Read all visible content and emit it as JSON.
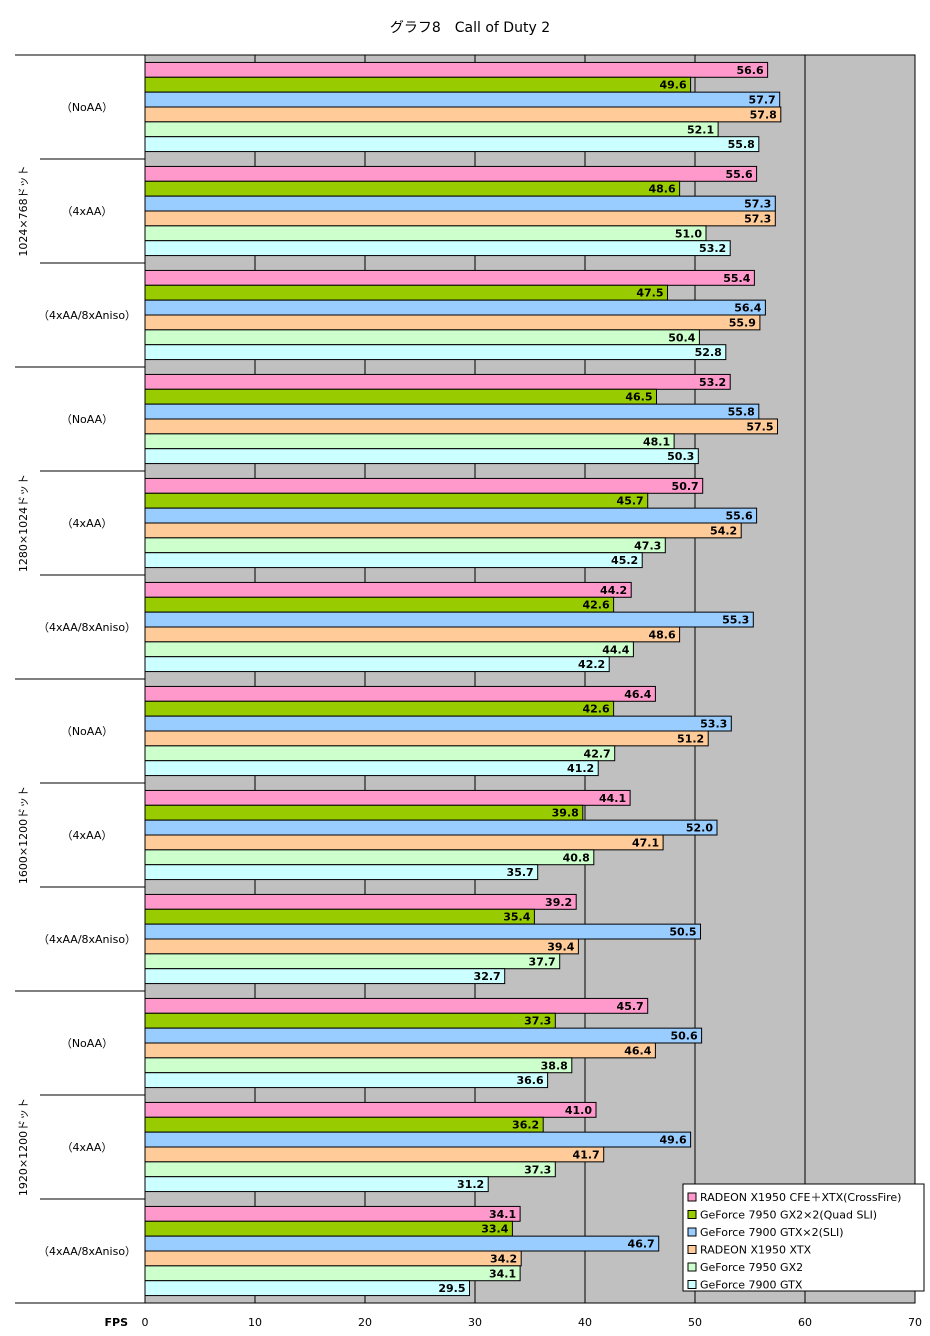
{
  "chart_data": {
    "type": "bar",
    "orientation": "horizontal",
    "title": "グラフ8　Call of Duty 2",
    "xlabel": "FPS",
    "xlim": [
      0,
      70
    ],
    "xticks": [
      0,
      10,
      20,
      30,
      40,
      50,
      60,
      70
    ],
    "grid": true,
    "legend_position": "bottom-right",
    "series": [
      {
        "name": "RADEON X1950 CFE＋XTX(CrossFire)",
        "color": "#ff99cc"
      },
      {
        "name": "GeForce 7950 GX2×2(Quad SLI)",
        "color": "#99cc00"
      },
      {
        "name": "GeForce 7900 GTX×2(SLI)",
        "color": "#99ccff"
      },
      {
        "name": "RADEON X1950 XTX",
        "color": "#ffcc99"
      },
      {
        "name": "GeForce 7950 GX2",
        "color": "#ccffcc"
      },
      {
        "name": "GeForce 7900 GTX",
        "color": "#ccffff"
      }
    ],
    "groups": [
      {
        "resolution": "1024×768ドット",
        "conditions": [
          {
            "label": "（NoAA）",
            "values": [
              56.6,
              49.6,
              57.7,
              57.8,
              52.1,
              55.8
            ]
          },
          {
            "label": "（4xAA）",
            "values": [
              55.6,
              48.6,
              57.3,
              57.3,
              51.0,
              53.2
            ]
          },
          {
            "label": "（4xAA/8xAniso）",
            "values": [
              55.4,
              47.5,
              56.4,
              55.9,
              50.4,
              52.8
            ]
          }
        ]
      },
      {
        "resolution": "1280×1024ドット",
        "conditions": [
          {
            "label": "（NoAA）",
            "values": [
              53.2,
              46.5,
              55.8,
              57.5,
              48.1,
              50.3
            ]
          },
          {
            "label": "（4xAA）",
            "values": [
              50.7,
              45.7,
              55.6,
              54.2,
              47.3,
              45.2
            ]
          },
          {
            "label": "（4xAA/8xAniso）",
            "values": [
              44.2,
              42.6,
              55.3,
              48.6,
              44.4,
              42.2
            ]
          }
        ]
      },
      {
        "resolution": "1600×1200ドット",
        "conditions": [
          {
            "label": "（NoAA）",
            "values": [
              46.4,
              42.6,
              53.3,
              51.2,
              42.7,
              41.2
            ]
          },
          {
            "label": "（4xAA）",
            "values": [
              44.1,
              39.8,
              52.0,
              47.1,
              40.8,
              35.7
            ]
          },
          {
            "label": "（4xAA/8xAniso）",
            "values": [
              39.2,
              35.4,
              50.5,
              39.4,
              37.7,
              32.7
            ]
          }
        ]
      },
      {
        "resolution": "1920×1200ドット",
        "conditions": [
          {
            "label": "（NoAA）",
            "values": [
              45.7,
              37.3,
              50.6,
              46.4,
              38.8,
              36.6
            ]
          },
          {
            "label": "（4xAA）",
            "values": [
              41.0,
              36.2,
              49.6,
              41.7,
              37.3,
              31.2
            ]
          },
          {
            "label": "（4xAA/8xAniso）",
            "values": [
              34.1,
              33.4,
              46.7,
              34.2,
              34.1,
              29.5
            ]
          }
        ]
      }
    ]
  }
}
